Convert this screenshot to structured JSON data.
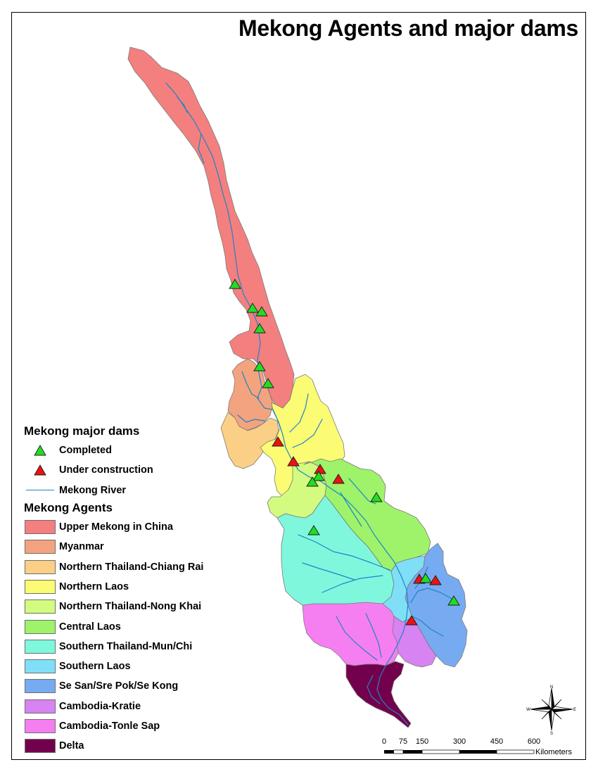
{
  "title": "Mekong Agents and major dams",
  "legend": {
    "dams_heading": "Mekong major dams",
    "dam_items": [
      {
        "label": "Completed",
        "color": "#22dd22",
        "icon": "triangle-up-icon"
      },
      {
        "label": "Under construction",
        "color": "#ee1111",
        "icon": "triangle-up-icon"
      }
    ],
    "river_label": "Mekong River",
    "river_color": "#1f84c6",
    "agents_heading": "Mekong Agents",
    "agents": [
      {
        "label": "Upper Mekong in China",
        "color": "#f47f7f"
      },
      {
        "label": "Myanmar",
        "color": "#f4a37f"
      },
      {
        "label": "Northern Thailand-Chiang Rai",
        "color": "#fbcf86"
      },
      {
        "label": "Northern Laos",
        "color": "#fbfb74"
      },
      {
        "label": "Northern Thailand-Nong Khai",
        "color": "#d3fb7f"
      },
      {
        "label": "Central Laos",
        "color": "#9ef36a"
      },
      {
        "label": "Southern Thailand-Mun/Chi",
        "color": "#7ff7dd"
      },
      {
        "label": "Southern Laos",
        "color": "#7fdff7"
      },
      {
        "label": "Se San/Sre Pok/Se Kong",
        "color": "#76abf1"
      },
      {
        "label": "Cambodia-Kratie",
        "color": "#d783f1"
      },
      {
        "label": "Cambodia-Tonle Sap",
        "color": "#f57ff0"
      },
      {
        "label": "Delta",
        "color": "#73004c"
      }
    ]
  },
  "scale_bar": {
    "ticks": [
      "0",
      "75",
      "150",
      "300",
      "450",
      "600"
    ],
    "unit": "Kilometers"
  },
  "north_arrow": {
    "n": "N",
    "s": "S",
    "e": "E",
    "w": "W"
  }
}
